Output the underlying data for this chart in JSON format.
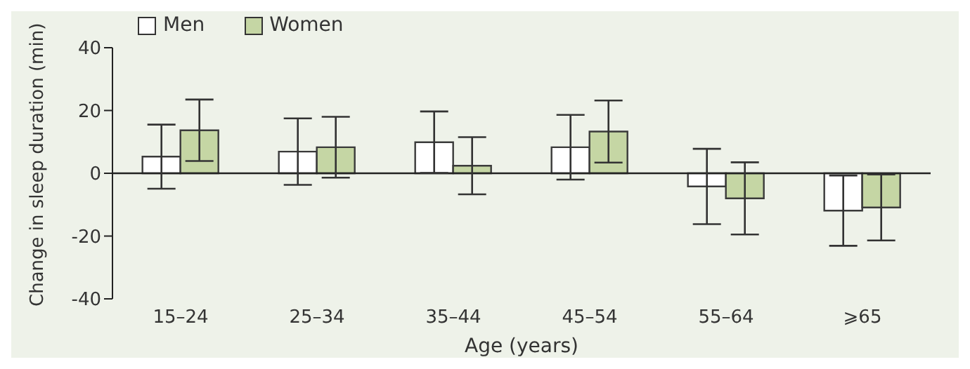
{
  "chart_data": {
    "type": "bar",
    "xlabel": "Age (years)",
    "ylabel": "Change in sleep duration (min)",
    "categories": [
      "15–24",
      "25–34",
      "35–44",
      "45–54",
      "55–64",
      "⩾65"
    ],
    "series": [
      {
        "name": "Men",
        "color": "#ffffff",
        "values": [
          5.3,
          6.9,
          9.9,
          8.3,
          -4.2,
          -11.9
        ],
        "errors": [
          10.2,
          10.6,
          9.8,
          10.3,
          12,
          11.2
        ]
      },
      {
        "name": "Women",
        "color": "#c5d6a4",
        "values": [
          13.7,
          8.3,
          2.4,
          13.3,
          -8,
          -10.9
        ],
        "errors": [
          9.8,
          9.7,
          9.1,
          9.9,
          11.5,
          10.5
        ]
      }
    ],
    "ylim": [
      -40,
      40
    ],
    "yticks": [
      40,
      20,
      0,
      -20,
      -40
    ],
    "legend": "top left"
  }
}
